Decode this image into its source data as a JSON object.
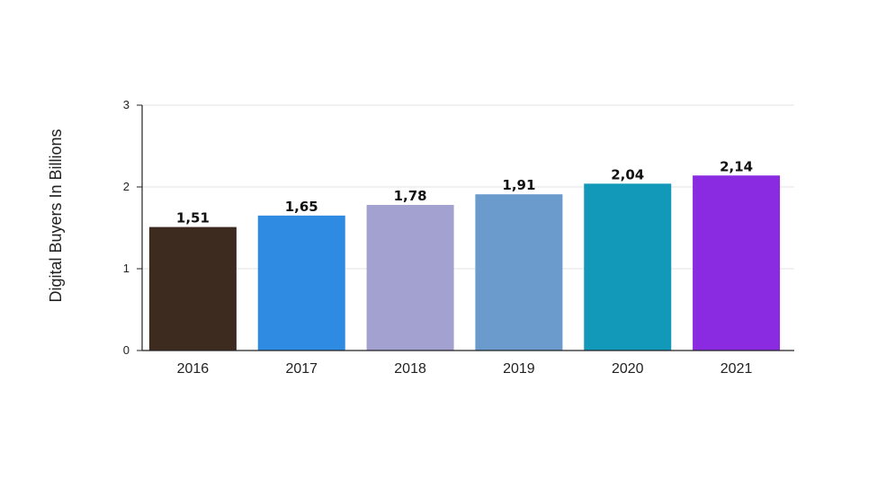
{
  "chart_data": {
    "type": "bar",
    "categories": [
      "2016",
      "2017",
      "2018",
      "2019",
      "2020",
      "2021"
    ],
    "values": [
      1.51,
      1.65,
      1.78,
      1.91,
      2.04,
      2.14
    ],
    "value_labels": [
      "1,51",
      "1,65",
      "1,78",
      "1,91",
      "2,04",
      "2,14"
    ],
    "bar_colors": [
      "#3d2b20",
      "#2f8ae2",
      "#a3a1d0",
      "#6a9bcc",
      "#1298b8",
      "#8a2be2"
    ],
    "title": "",
    "xlabel": "",
    "ylabel": "Digital Buyers In Billions",
    "ylim": [
      0,
      3
    ],
    "yticks": [
      "0",
      "1",
      "2",
      "3"
    ],
    "grid": true,
    "legend": "none"
  }
}
